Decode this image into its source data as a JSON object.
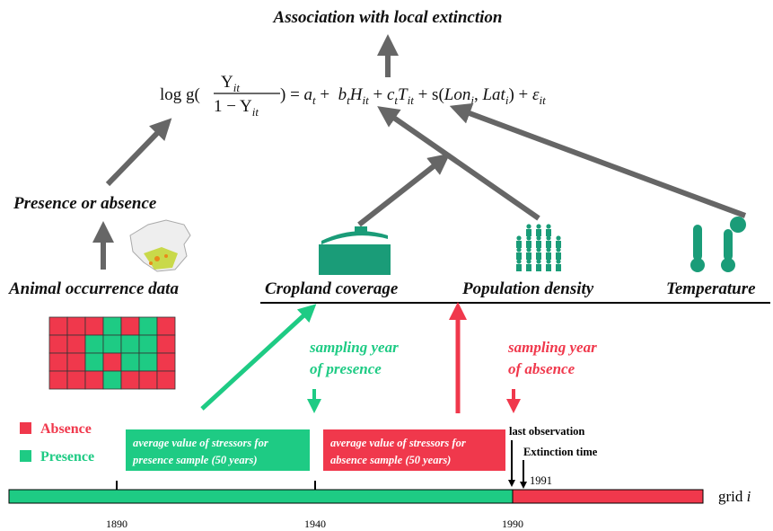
{
  "title": "Association with local extinction",
  "equation": {
    "lhs": "log g(",
    "numerator": {
      "text": "Y",
      "sub": "it"
    },
    "denominator": {
      "text": "1 − Y",
      "sub": "it"
    },
    "rhs": [
      {
        "text": ") = "
      },
      {
        "text": "a",
        "sub": "t"
      },
      {
        "text": " +  "
      },
      {
        "text": "b",
        "sub": "t"
      },
      {
        "text": "H",
        "sub": "it"
      },
      {
        "text": " + "
      },
      {
        "text": "c",
        "sub": "t"
      },
      {
        "text": "T",
        "sub": "it"
      },
      {
        "text": " + s("
      },
      {
        "text": "Lon",
        "sub": "i"
      },
      {
        "text": ", "
      },
      {
        "text": "Lat",
        "sub": "i"
      },
      {
        "text": ") + "
      },
      {
        "text": "ε",
        "sub": "it"
      }
    ]
  },
  "labels": {
    "presence_or_absence": "Presence or absence",
    "animal_data": "Animal occurrence data",
    "cropland": "Cropland coverage",
    "population": "Population density",
    "temperature": "Temperature"
  },
  "sampling": {
    "presence": [
      "sampling year",
      "of presence"
    ],
    "absence": [
      "sampling year",
      "of absence"
    ]
  },
  "legend": {
    "absence": "Absence",
    "presence": "Presence"
  },
  "boxes": {
    "presence": [
      "average value of stressors for",
      "presence sample (50 years)"
    ],
    "absence": [
      "average value of stressors for",
      "absence sample (50 years)"
    ]
  },
  "timeline": {
    "last_observation": "last observation",
    "extinction_time": "Extinction time",
    "extinction_year": "1991",
    "ticks": [
      "1890",
      "1940",
      "1990"
    ],
    "grid_label": {
      "text": "grid",
      "var": "i"
    }
  }
}
